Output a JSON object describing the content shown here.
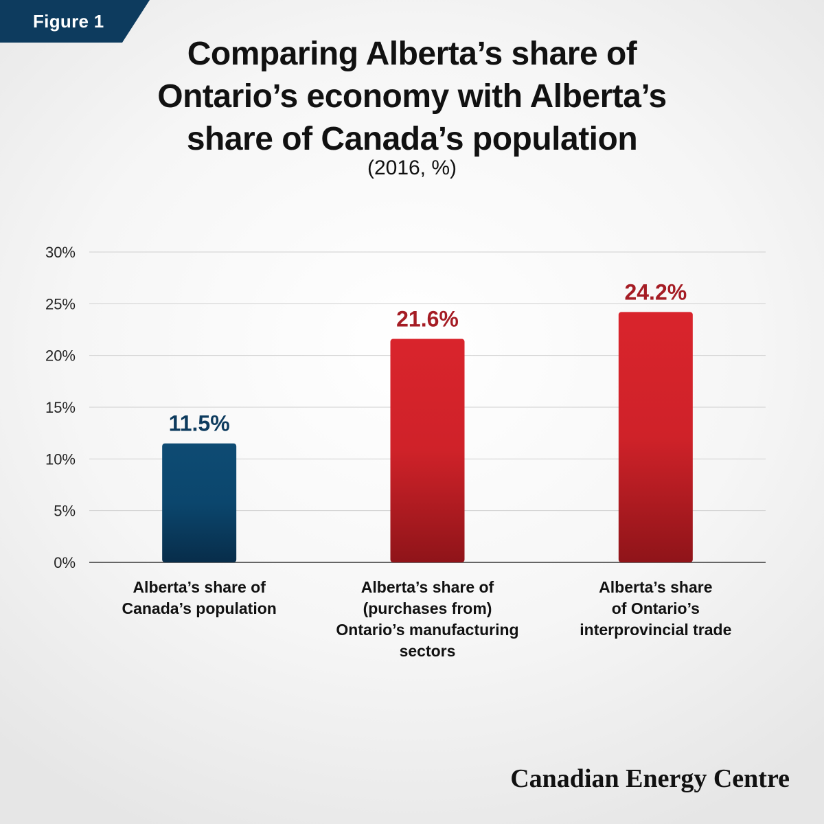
{
  "figure_label": "Figure 1",
  "brand": "Canadian Energy Centre",
  "colors": {
    "tab": "#0d3b5e",
    "blue_bar": "#0d4a72",
    "red_bar": "#d6232b",
    "blue_label": "#0d3b5e",
    "red_label": "#a51c24"
  },
  "chart_data": {
    "type": "bar",
    "title_lines": [
      "Comparing Alberta’s share of",
      "Ontario’s economy with Alberta’s",
      "share of Canada’s population"
    ],
    "subtitle": "(2016, %)",
    "ylim": [
      0,
      30
    ],
    "yticks": [
      0,
      5,
      10,
      15,
      20,
      25,
      30
    ],
    "ytick_labels": [
      "0%",
      "5%",
      "10%",
      "15%",
      "20%",
      "25%",
      "30%"
    ],
    "grid": true,
    "categories": [
      "Alberta’s share of\nCanada’s population",
      "Alberta’s share of\n(purchases from)\nOntario’s manufacturing\nsectors",
      "Alberta’s share\nof Ontario’s\ninterprovincial trade"
    ],
    "values": [
      11.5,
      21.6,
      24.2
    ],
    "data_labels": [
      "11.5%",
      "21.6%",
      "24.2%"
    ],
    "bar_colors": [
      "blue",
      "red",
      "red"
    ]
  }
}
